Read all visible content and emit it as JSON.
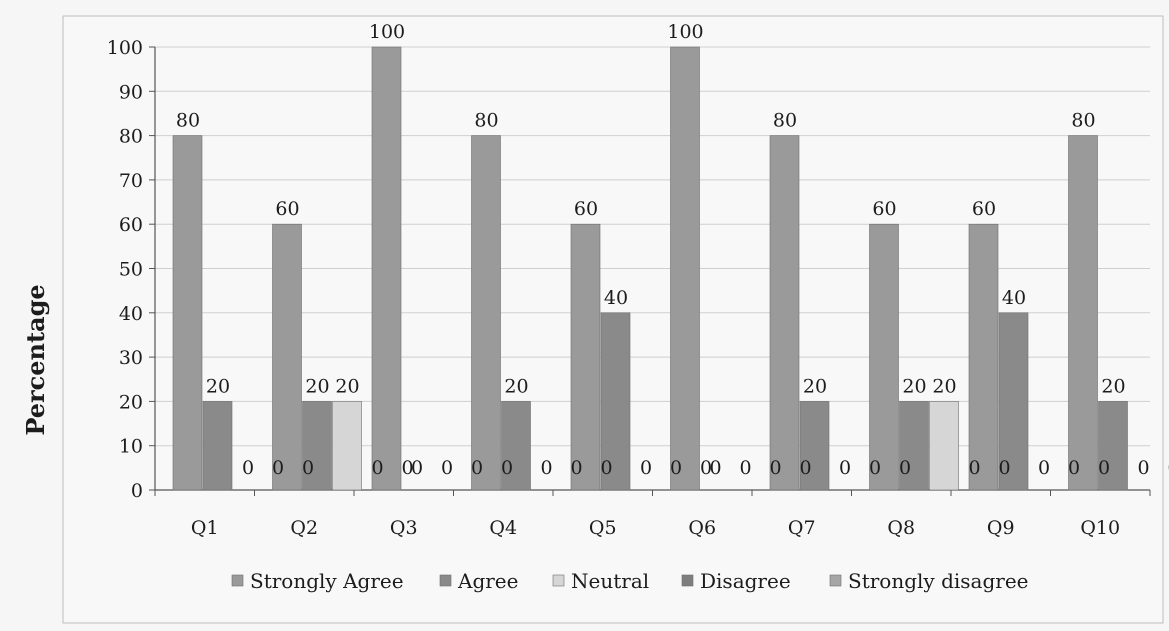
{
  "chart_data": {
    "type": "bar",
    "title": "",
    "xlabel": "",
    "ylabel": "Percentage",
    "ylim": [
      0,
      100
    ],
    "yticks": [
      0,
      10,
      20,
      30,
      40,
      50,
      60,
      70,
      80,
      90,
      100
    ],
    "grid": true,
    "legend_position": "bottom",
    "categories": [
      "Q1",
      "Q2",
      "Q3",
      "Q4",
      "Q5",
      "Q6",
      "Q7",
      "Q8",
      "Q9",
      "Q10"
    ],
    "series": [
      {
        "name": "Strongly Agree",
        "color": "#9a9a9a",
        "values": [
          80,
          60,
          100,
          80,
          60,
          100,
          80,
          60,
          60,
          80
        ]
      },
      {
        "name": "Agree",
        "color": "#8a8a8a",
        "values": [
          20,
          20,
          0,
          20,
          40,
          0,
          20,
          20,
          40,
          20
        ]
      },
      {
        "name": "Neutral",
        "color": "#d6d6d6",
        "values": [
          0,
          20,
          0,
          0,
          0,
          0,
          0,
          20,
          0,
          0
        ]
      },
      {
        "name": "Disagree",
        "color": "#7e7e7e",
        "values": [
          0,
          0,
          0,
          0,
          0,
          0,
          0,
          0,
          0,
          0
        ]
      },
      {
        "name": "Strongly disagree",
        "color": "#a6a6a6",
        "values": [
          0,
          0,
          0,
          0,
          0,
          0,
          0,
          0,
          0,
          0
        ]
      }
    ]
  }
}
